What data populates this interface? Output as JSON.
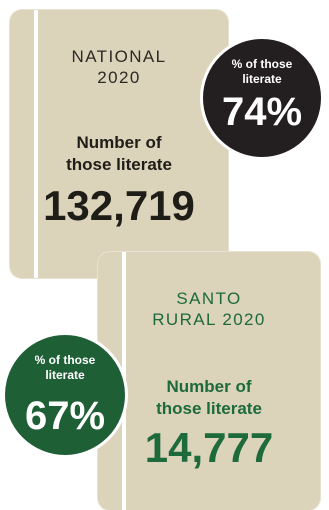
{
  "national": {
    "heading_line1": "NATIONAL",
    "heading_line2": "2020",
    "label_line1": "Number of",
    "label_line2": "those literate",
    "number": "132,719",
    "badge_line1": "% of those",
    "badge_line2": "literate",
    "badge_percent": "74%"
  },
  "santo": {
    "heading_line1": "SANTO",
    "heading_line2": "RURAL 2020",
    "label_line1": "Number of",
    "label_line2": "those literate",
    "number": "14,777",
    "badge_line1": "% of those",
    "badge_line2": "literate",
    "badge_percent": "67%"
  },
  "colors": {
    "card": "#dcd3bb",
    "national_badge": "#231f20",
    "santo_badge": "#1f5f36",
    "santo_text": "#1d6a3a"
  }
}
